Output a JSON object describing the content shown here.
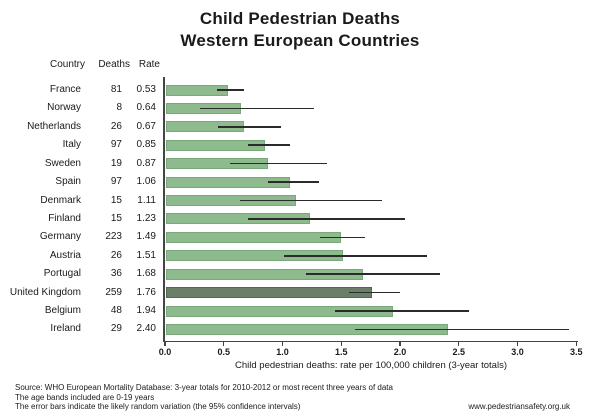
{
  "title": {
    "line1": "Child Pedestrian Deaths",
    "line2": "Western European Countries"
  },
  "table_header": {
    "country": "Country",
    "deaths": "Deaths",
    "rate": "Rate"
  },
  "chart_data": {
    "type": "bar",
    "orientation": "horizontal",
    "categories": [
      "France",
      "Norway",
      "Netherlands",
      "Italy",
      "Sweden",
      "Spain",
      "Denmark",
      "Finland",
      "Germany",
      "Austria",
      "Portugal",
      "United Kingdom",
      "Belgium",
      "Ireland"
    ],
    "deaths": [
      81,
      8,
      26,
      97,
      19,
      97,
      15,
      15,
      223,
      26,
      36,
      259,
      48,
      29
    ],
    "rates": [
      0.53,
      0.64,
      0.67,
      0.85,
      0.87,
      1.06,
      1.11,
      1.23,
      1.49,
      1.51,
      1.68,
      1.76,
      1.94,
      2.4
    ],
    "ci_low": [
      0.44,
      0.3,
      0.45,
      0.71,
      0.55,
      0.88,
      0.64,
      0.71,
      1.32,
      1.01,
      1.2,
      1.57,
      1.45,
      1.62
    ],
    "ci_high": [
      0.67,
      1.27,
      0.99,
      1.06,
      1.38,
      1.31,
      1.85,
      2.04,
      1.7,
      2.23,
      2.34,
      2.0,
      2.59,
      3.44
    ],
    "highlight_category": "United Kingdom",
    "xlabel": "Child pedestrian deaths: rate per 100,000 children (3-year totals)",
    "xlim": [
      0,
      3.5
    ],
    "xticks": [
      0.0,
      0.5,
      1.0,
      1.5,
      2.0,
      2.5,
      3.0,
      3.5
    ],
    "grid": false,
    "legend": "none",
    "colors": {
      "bar_fill": "#8dbb8d",
      "bar_border": "#7aa87a",
      "highlight_fill": "#6a7e69",
      "highlight_border": "#526650",
      "error_bar": "#2b2b2b",
      "axis": "#454545"
    }
  },
  "footnotes": {
    "line1": "Source: WHO European Mortality Database: 3-year totals for 2010-2012 or most recent three years of data",
    "line2": "The age bands included are 0-19 years",
    "line3": "The error bars indicate the likely random variation (the 95% confidence intervals)",
    "website": "www.pedestriansafety.org.uk"
  }
}
